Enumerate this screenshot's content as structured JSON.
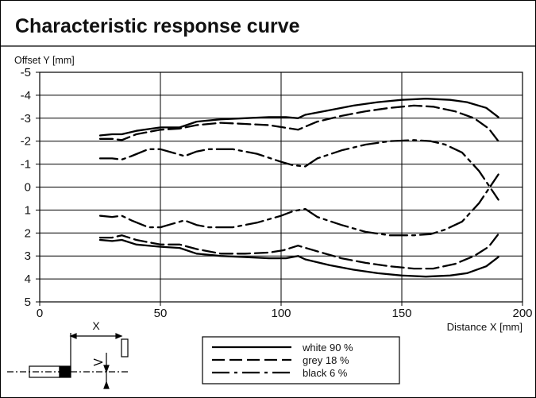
{
  "chart_data": {
    "type": "line",
    "title": "Characteristic response curve",
    "xlabel": "Distance X [mm]",
    "ylabel": "Offset Y [mm]",
    "xlim": [
      0,
      200
    ],
    "ylim": [
      -5,
      5
    ],
    "y_axis_inverted": true,
    "x_ticks": [
      0,
      50,
      100,
      150,
      200
    ],
    "y_ticks": [
      -5,
      -4,
      -3,
      -2,
      -1,
      0,
      1,
      2,
      3,
      4,
      5
    ],
    "grid": true,
    "legend": {
      "placement": "below-plot",
      "entries": [
        {
          "label": "white 90 %",
          "style": "solid"
        },
        {
          "label": "grey 18 %",
          "style": "dashed"
        },
        {
          "label": "black 6 %",
          "style": "dash-dot"
        }
      ]
    },
    "series": [
      {
        "name": "white 90 %",
        "style": "solid",
        "segments": [
          {
            "x": [
              25,
              30,
              34,
              40,
              50,
              58,
              65,
              75,
              85,
              95,
              102,
              107,
              110,
              120,
              130,
              140,
              150,
              160,
              170,
              177,
              185,
              190
            ],
            "y": [
              -2.25,
              -2.3,
              -2.3,
              -2.45,
              -2.6,
              -2.6,
              -2.85,
              -2.95,
              -3.0,
              -3.05,
              -3.05,
              -3.0,
              -3.15,
              -3.35,
              -3.55,
              -3.7,
              -3.8,
              -3.85,
              -3.8,
              -3.7,
              -3.45,
              -3.05
            ]
          },
          {
            "x": [
              25,
              30,
              34,
              40,
              50,
              58,
              65,
              75,
              85,
              95,
              102,
              107,
              110,
              120,
              130,
              140,
              150,
              160,
              170,
              177,
              185,
              190
            ],
            "y": [
              2.3,
              2.35,
              2.3,
              2.5,
              2.6,
              2.65,
              2.9,
              3.0,
              3.05,
              3.1,
              3.1,
              3.0,
              3.15,
              3.4,
              3.6,
              3.75,
              3.85,
              3.9,
              3.85,
              3.75,
              3.45,
              3.05
            ]
          }
        ]
      },
      {
        "name": "grey 18 %",
        "style": "dashed",
        "segments": [
          {
            "x": [
              25,
              30,
              34,
              40,
              50,
              58,
              65,
              75,
              85,
              95,
              101,
              107,
              115,
              125,
              135,
              145,
              155,
              163,
              172,
              180,
              186,
              190
            ],
            "y": [
              -2.1,
              -2.1,
              -2.05,
              -2.3,
              -2.5,
              -2.55,
              -2.7,
              -2.8,
              -2.75,
              -2.7,
              -2.6,
              -2.5,
              -2.85,
              -3.1,
              -3.3,
              -3.45,
              -3.55,
              -3.5,
              -3.3,
              -3.0,
              -2.55,
              -2.0
            ]
          },
          {
            "x": [
              25,
              30,
              34,
              40,
              50,
              58,
              65,
              75,
              85,
              95,
              101,
              107,
              115,
              125,
              135,
              145,
              155,
              163,
              172,
              180,
              186,
              190
            ],
            "y": [
              2.2,
              2.2,
              2.1,
              2.3,
              2.5,
              2.5,
              2.7,
              2.9,
              2.9,
              2.85,
              2.75,
              2.55,
              2.8,
              3.1,
              3.3,
              3.45,
              3.55,
              3.55,
              3.35,
              3.0,
              2.6,
              2.05
            ]
          }
        ]
      },
      {
        "name": "black 6 %",
        "style": "dash-dot",
        "segments": [
          {
            "x": [
              25,
              30,
              34,
              38,
              45,
              50,
              55,
              60,
              65,
              70,
              80,
              90,
              100,
              105,
              110,
              115,
              125,
              135,
              145,
              155,
              162,
              168,
              175,
              182,
              190
            ],
            "y": [
              -1.25,
              -1.25,
              -1.2,
              -1.35,
              -1.65,
              -1.65,
              -1.5,
              -1.35,
              -1.55,
              -1.65,
              -1.65,
              -1.45,
              -1.1,
              -0.95,
              -0.9,
              -1.25,
              -1.6,
              -1.85,
              -2.0,
              -2.05,
              -2.0,
              -1.85,
              -1.5,
              -0.7,
              0.55
            ]
          },
          {
            "x": [
              25,
              30,
              34,
              38,
              45,
              50,
              55,
              60,
              65,
              70,
              80,
              90,
              100,
              105,
              110,
              115,
              125,
              135,
              145,
              155,
              162,
              168,
              175,
              182,
              190
            ],
            "y": [
              1.25,
              1.3,
              1.25,
              1.45,
              1.75,
              1.75,
              1.6,
              1.45,
              1.65,
              1.75,
              1.75,
              1.55,
              1.25,
              1.05,
              0.95,
              1.3,
              1.65,
              1.95,
              2.1,
              2.1,
              2.05,
              1.85,
              1.5,
              0.7,
              -0.55
            ]
          }
        ]
      }
    ],
    "annotations": [
      {
        "text": "X",
        "context": "sensor schematic distance label"
      }
    ]
  }
}
